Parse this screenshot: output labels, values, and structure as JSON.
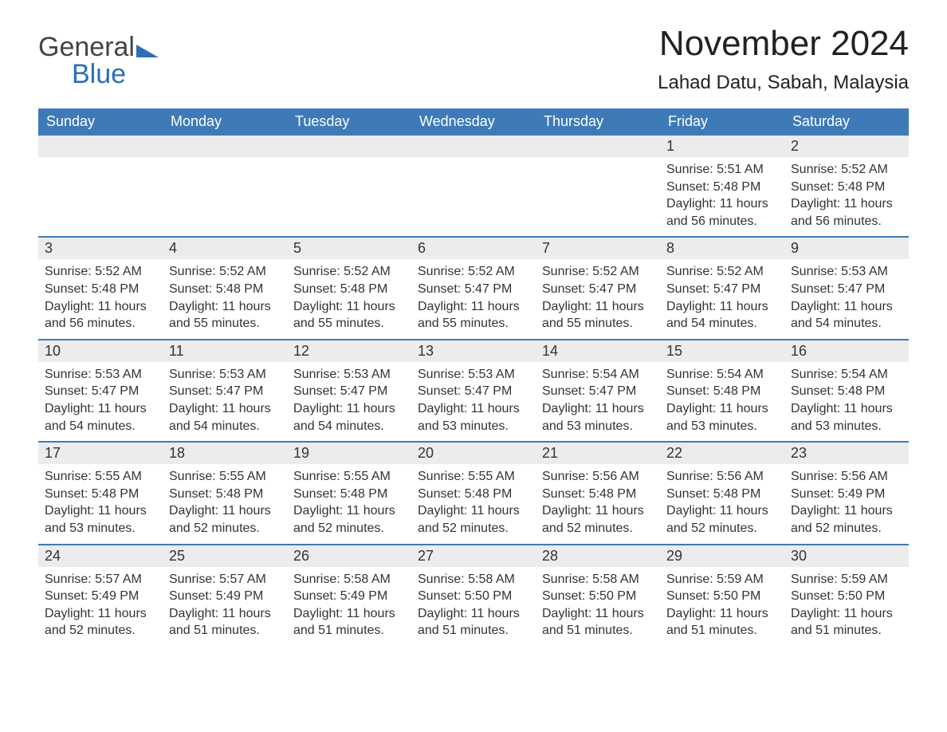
{
  "logo": {
    "general": "General",
    "blue": "Blue"
  },
  "title": "November 2024",
  "location": "Lahad Datu, Sabah, Malaysia",
  "theme": {
    "header_bg": "#3e7ab8",
    "header_text": "#ffffff",
    "daynum_bg": "#ececec",
    "text_color": "#333333",
    "week_border": "#3e7ab8",
    "page_bg": "#ffffff",
    "logo_gray": "#444444",
    "logo_blue": "#2c6fb6",
    "title_fontsize": 44,
    "location_fontsize": 24,
    "dayheader_fontsize": 18,
    "body_fontsize": 16
  },
  "day_headers": [
    "Sunday",
    "Monday",
    "Tuesday",
    "Wednesday",
    "Thursday",
    "Friday",
    "Saturday"
  ],
  "labels": {
    "sunrise": "Sunrise:",
    "sunset": "Sunset:",
    "daylight": "Daylight:"
  },
  "weeks": [
    [
      null,
      null,
      null,
      null,
      null,
      {
        "day": 1,
        "sunrise": "5:51 AM",
        "sunset": "5:48 PM",
        "daylight": "11 hours and 56 minutes."
      },
      {
        "day": 2,
        "sunrise": "5:52 AM",
        "sunset": "5:48 PM",
        "daylight": "11 hours and 56 minutes."
      }
    ],
    [
      {
        "day": 3,
        "sunrise": "5:52 AM",
        "sunset": "5:48 PM",
        "daylight": "11 hours and 56 minutes."
      },
      {
        "day": 4,
        "sunrise": "5:52 AM",
        "sunset": "5:48 PM",
        "daylight": "11 hours and 55 minutes."
      },
      {
        "day": 5,
        "sunrise": "5:52 AM",
        "sunset": "5:48 PM",
        "daylight": "11 hours and 55 minutes."
      },
      {
        "day": 6,
        "sunrise": "5:52 AM",
        "sunset": "5:47 PM",
        "daylight": "11 hours and 55 minutes."
      },
      {
        "day": 7,
        "sunrise": "5:52 AM",
        "sunset": "5:47 PM",
        "daylight": "11 hours and 55 minutes."
      },
      {
        "day": 8,
        "sunrise": "5:52 AM",
        "sunset": "5:47 PM",
        "daylight": "11 hours and 54 minutes."
      },
      {
        "day": 9,
        "sunrise": "5:53 AM",
        "sunset": "5:47 PM",
        "daylight": "11 hours and 54 minutes."
      }
    ],
    [
      {
        "day": 10,
        "sunrise": "5:53 AM",
        "sunset": "5:47 PM",
        "daylight": "11 hours and 54 minutes."
      },
      {
        "day": 11,
        "sunrise": "5:53 AM",
        "sunset": "5:47 PM",
        "daylight": "11 hours and 54 minutes."
      },
      {
        "day": 12,
        "sunrise": "5:53 AM",
        "sunset": "5:47 PM",
        "daylight": "11 hours and 54 minutes."
      },
      {
        "day": 13,
        "sunrise": "5:53 AM",
        "sunset": "5:47 PM",
        "daylight": "11 hours and 53 minutes."
      },
      {
        "day": 14,
        "sunrise": "5:54 AM",
        "sunset": "5:47 PM",
        "daylight": "11 hours and 53 minutes."
      },
      {
        "day": 15,
        "sunrise": "5:54 AM",
        "sunset": "5:48 PM",
        "daylight": "11 hours and 53 minutes."
      },
      {
        "day": 16,
        "sunrise": "5:54 AM",
        "sunset": "5:48 PM",
        "daylight": "11 hours and 53 minutes."
      }
    ],
    [
      {
        "day": 17,
        "sunrise": "5:55 AM",
        "sunset": "5:48 PM",
        "daylight": "11 hours and 53 minutes."
      },
      {
        "day": 18,
        "sunrise": "5:55 AM",
        "sunset": "5:48 PM",
        "daylight": "11 hours and 52 minutes."
      },
      {
        "day": 19,
        "sunrise": "5:55 AM",
        "sunset": "5:48 PM",
        "daylight": "11 hours and 52 minutes."
      },
      {
        "day": 20,
        "sunrise": "5:55 AM",
        "sunset": "5:48 PM",
        "daylight": "11 hours and 52 minutes."
      },
      {
        "day": 21,
        "sunrise": "5:56 AM",
        "sunset": "5:48 PM",
        "daylight": "11 hours and 52 minutes."
      },
      {
        "day": 22,
        "sunrise": "5:56 AM",
        "sunset": "5:48 PM",
        "daylight": "11 hours and 52 minutes."
      },
      {
        "day": 23,
        "sunrise": "5:56 AM",
        "sunset": "5:49 PM",
        "daylight": "11 hours and 52 minutes."
      }
    ],
    [
      {
        "day": 24,
        "sunrise": "5:57 AM",
        "sunset": "5:49 PM",
        "daylight": "11 hours and 52 minutes."
      },
      {
        "day": 25,
        "sunrise": "5:57 AM",
        "sunset": "5:49 PM",
        "daylight": "11 hours and 51 minutes."
      },
      {
        "day": 26,
        "sunrise": "5:58 AM",
        "sunset": "5:49 PM",
        "daylight": "11 hours and 51 minutes."
      },
      {
        "day": 27,
        "sunrise": "5:58 AM",
        "sunset": "5:50 PM",
        "daylight": "11 hours and 51 minutes."
      },
      {
        "day": 28,
        "sunrise": "5:58 AM",
        "sunset": "5:50 PM",
        "daylight": "11 hours and 51 minutes."
      },
      {
        "day": 29,
        "sunrise": "5:59 AM",
        "sunset": "5:50 PM",
        "daylight": "11 hours and 51 minutes."
      },
      {
        "day": 30,
        "sunrise": "5:59 AM",
        "sunset": "5:50 PM",
        "daylight": "11 hours and 51 minutes."
      }
    ]
  ]
}
